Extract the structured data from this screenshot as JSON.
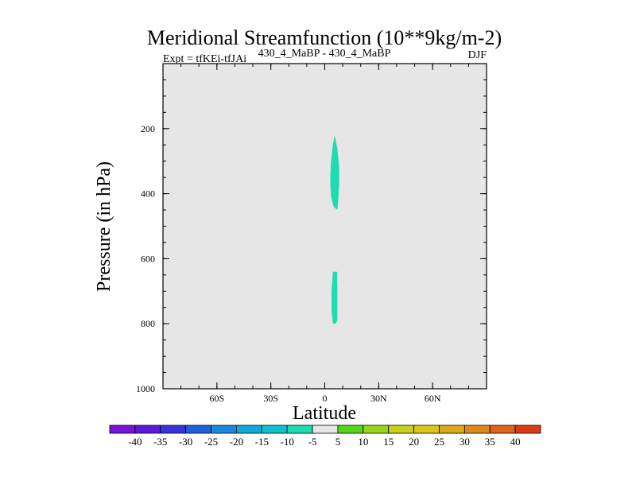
{
  "chart_data": {
    "type": "heatmap",
    "title": "Meridional Streamfunction (10**9kg/m-2)",
    "left_label": "Expt = tfKEi-tfJAi",
    "center_label": "430_4_MaBP - 430_4_MaBP",
    "right_label": "DJF",
    "xlabel": "Latitude",
    "ylabel": "Pressure (in hPa)",
    "xlim": [
      -90,
      90
    ],
    "ylim": [
      1000,
      0
    ],
    "x_ticks": [
      {
        "value": -60,
        "label": "60S"
      },
      {
        "value": -30,
        "label": "30S"
      },
      {
        "value": 0,
        "label": "0"
      },
      {
        "value": 30,
        "label": "30N"
      },
      {
        "value": 60,
        "label": "60N"
      }
    ],
    "y_ticks": [
      {
        "value": 200,
        "label": "200"
      },
      {
        "value": 400,
        "label": "400"
      },
      {
        "value": 600,
        "label": "600"
      },
      {
        "value": 800,
        "label": "800"
      },
      {
        "value": 1000,
        "label": "1000"
      }
    ],
    "background_color": "#e6e6e6",
    "regions": [
      {
        "level": "-10 to -5",
        "color": "#1cdcb0",
        "outline": [
          [
            5.5,
            220
          ],
          [
            7,
            260
          ],
          [
            8,
            320
          ],
          [
            8,
            370
          ],
          [
            7.5,
            420
          ],
          [
            7,
            450
          ],
          [
            5,
            440
          ],
          [
            3.5,
            410
          ],
          [
            3,
            360
          ],
          [
            3.5,
            300
          ],
          [
            4.5,
            250
          ]
        ]
      },
      {
        "level": "-10 to -5",
        "color": "#1cdcb0",
        "outline": [
          [
            4.5,
            640
          ],
          [
            6.8,
            640
          ],
          [
            7,
            700
          ],
          [
            7,
            790
          ],
          [
            6,
            800
          ],
          [
            4.5,
            800
          ],
          [
            3.8,
            760
          ],
          [
            3.8,
            700
          ]
        ]
      }
    ],
    "colorbar": {
      "labels": [
        "-40",
        "-35",
        "-30",
        "-25",
        "-20",
        "-15",
        "-10",
        "-5",
        "5",
        "10",
        "15",
        "20",
        "25",
        "30",
        "35",
        "40"
      ],
      "colors": [
        "#7a12d8",
        "#5a1ad8",
        "#3a34d8",
        "#2060d8",
        "#1a88d8",
        "#10a8d8",
        "#10c0d0",
        "#1cdcb0",
        "#e6e6e6",
        "#56d41c",
        "#98d41c",
        "#c8d01c",
        "#dcc41c",
        "#dca81c",
        "#dc881c",
        "#dc641c",
        "#d83c12"
      ]
    }
  }
}
